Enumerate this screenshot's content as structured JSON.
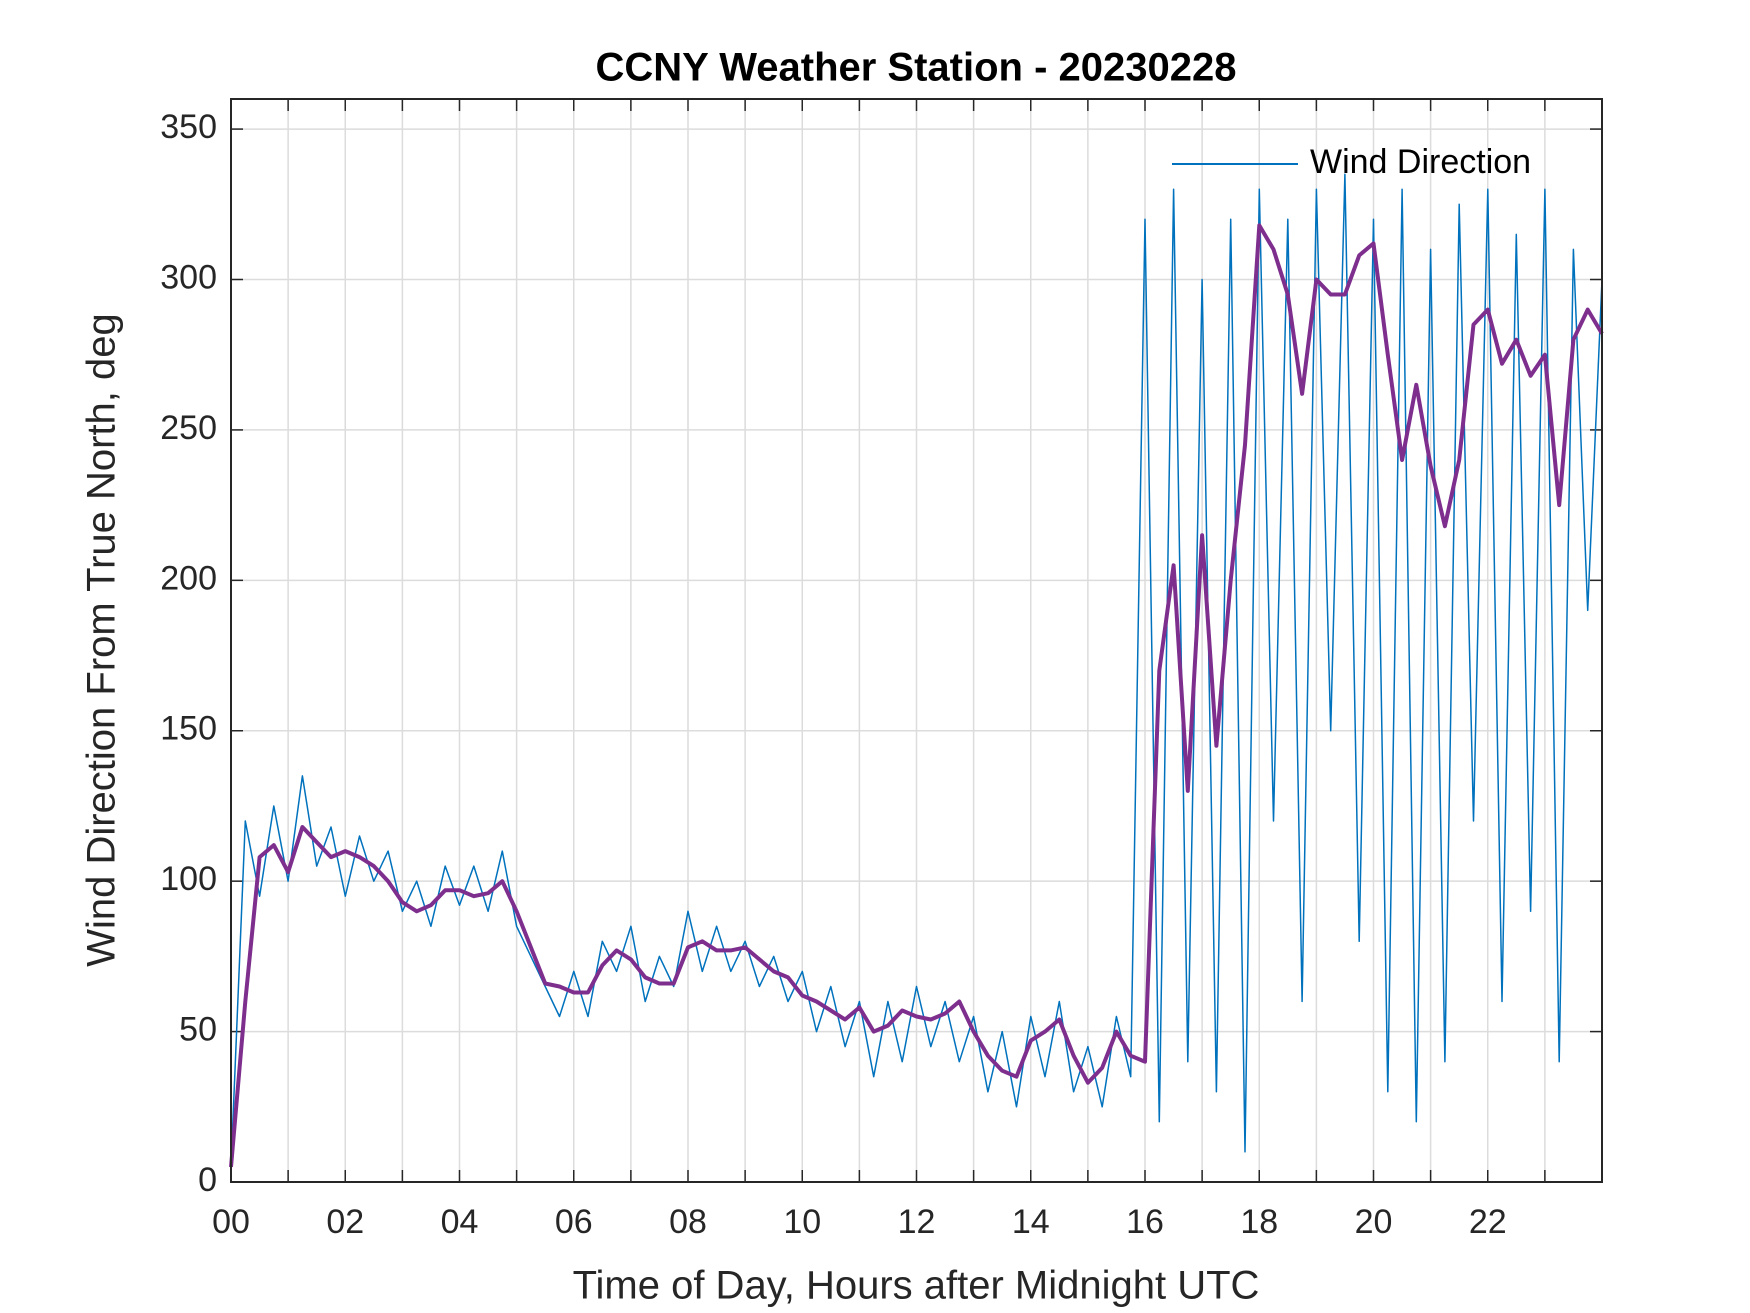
{
  "chart_data": {
    "type": "line",
    "title": "CCNY Weather Station - 20230228",
    "xlabel": "Time of Day, Hours after Midnight UTC",
    "ylabel": "Wind Direction From True North, deg",
    "x": [
      0,
      0.25,
      0.5,
      0.75,
      1,
      1.25,
      1.5,
      1.75,
      2,
      2.25,
      2.5,
      2.75,
      3,
      3.25,
      3.5,
      3.75,
      4,
      4.25,
      4.5,
      4.75,
      5,
      5.25,
      5.5,
      5.75,
      6,
      6.25,
      6.5,
      6.75,
      7,
      7.25,
      7.5,
      7.75,
      8,
      8.25,
      8.5,
      8.75,
      9,
      9.25,
      9.5,
      9.75,
      10,
      10.25,
      10.5,
      10.75,
      11,
      11.25,
      11.5,
      11.75,
      12,
      12.25,
      12.5,
      12.75,
      13,
      13.25,
      13.5,
      13.75,
      14,
      14.25,
      14.5,
      14.75,
      15,
      15.25,
      15.5,
      15.75,
      16,
      16.25,
      16.5,
      16.75,
      17,
      17.25,
      17.5,
      17.75,
      18,
      18.25,
      18.5,
      18.75,
      19,
      19.25,
      19.5,
      19.75,
      20,
      20.25,
      20.5,
      20.75,
      21,
      21.25,
      21.5,
      21.75,
      22,
      22.25,
      22.5,
      22.75,
      23,
      23.25,
      23.5,
      23.75,
      24
    ],
    "series": [
      {
        "name": "Wind Direction",
        "color": "#0072bd",
        "width": 1.5,
        "values": [
          5,
          120,
          95,
          125,
          100,
          135,
          105,
          118,
          95,
          115,
          100,
          110,
          90,
          100,
          85,
          105,
          92,
          105,
          90,
          110,
          85,
          75,
          65,
          55,
          70,
          55,
          80,
          70,
          85,
          60,
          75,
          65,
          90,
          70,
          85,
          70,
          80,
          65,
          75,
          60,
          70,
          50,
          65,
          45,
          60,
          35,
          60,
          40,
          65,
          45,
          60,
          40,
          55,
          30,
          50,
          25,
          55,
          35,
          60,
          30,
          45,
          25,
          55,
          35,
          320,
          20,
          330,
          40,
          300,
          30,
          320,
          10,
          330,
          120,
          320,
          60,
          330,
          150,
          335,
          80,
          320,
          30,
          330,
          20,
          310,
          40,
          325,
          120,
          330,
          60,
          315,
          90,
          330,
          40,
          310,
          190,
          300
        ]
      },
      {
        "color": "#7e2f8e",
        "width": 4,
        "values": [
          5,
          60,
          108,
          112,
          103,
          118,
          113,
          108,
          110,
          108,
          105,
          100,
          93,
          90,
          92,
          97,
          97,
          95,
          96,
          100,
          90,
          78,
          66,
          65,
          63,
          63,
          72,
          77,
          74,
          68,
          66,
          66,
          78,
          80,
          77,
          77,
          78,
          74,
          70,
          68,
          62,
          60,
          57,
          54,
          58,
          50,
          52,
          57,
          55,
          54,
          56,
          60,
          50,
          42,
          37,
          35,
          47,
          50,
          54,
          42,
          33,
          38,
          50,
          42,
          40,
          170,
          205,
          130,
          215,
          145,
          200,
          245,
          318,
          310,
          295,
          262,
          300,
          295,
          295,
          308,
          312,
          275,
          240,
          265,
          238,
          218,
          240,
          285,
          290,
          272,
          280,
          268,
          275,
          225,
          280,
          290,
          282
        ]
      }
    ],
    "xlim": [
      0,
      24
    ],
    "xticks": [
      {
        "value": 0,
        "label": "00"
      },
      {
        "value": 2,
        "label": "02"
      },
      {
        "value": 4,
        "label": "04"
      },
      {
        "value": 6,
        "label": "06"
      },
      {
        "value": 8,
        "label": "08"
      },
      {
        "value": 10,
        "label": "10"
      },
      {
        "value": 12,
        "label": "12"
      },
      {
        "value": 14,
        "label": "14"
      },
      {
        "value": 16,
        "label": "16"
      },
      {
        "value": 18,
        "label": "18"
      },
      {
        "value": 20,
        "label": "20"
      },
      {
        "value": 22,
        "label": "22"
      }
    ],
    "xminorticks": [
      1,
      3,
      5,
      7,
      9,
      11,
      13,
      15,
      17,
      19,
      21,
      23
    ],
    "ylim": [
      0,
      360
    ],
    "yticks": [
      0,
      50,
      100,
      150,
      200,
      250,
      300,
      350
    ],
    "grid": true,
    "legend": "top-right"
  }
}
